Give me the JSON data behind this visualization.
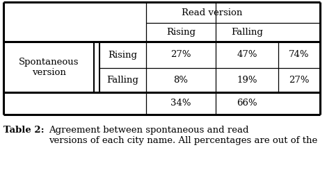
{
  "title_bold": "Table 2:",
  "title_text": "Agreement between spontaneous and read\nversions of each city name. All percentages are out of the",
  "read_version_header": "Read version",
  "col_headers": [
    "Rising",
    "Falling"
  ],
  "row_group_label": "Spontaneous\nversion",
  "row_labels": [
    "Rising",
    "Falling"
  ],
  "data": [
    [
      "27%",
      "47%",
      "74%"
    ],
    [
      "8%",
      "19%",
      "27%"
    ]
  ],
  "col_totals": [
    "34%",
    "66%"
  ],
  "bg_color": "#ffffff",
  "text_color": "#000000",
  "font_size": 9.5,
  "caption_font_size": 9.5,
  "header_font_size": 9.5
}
